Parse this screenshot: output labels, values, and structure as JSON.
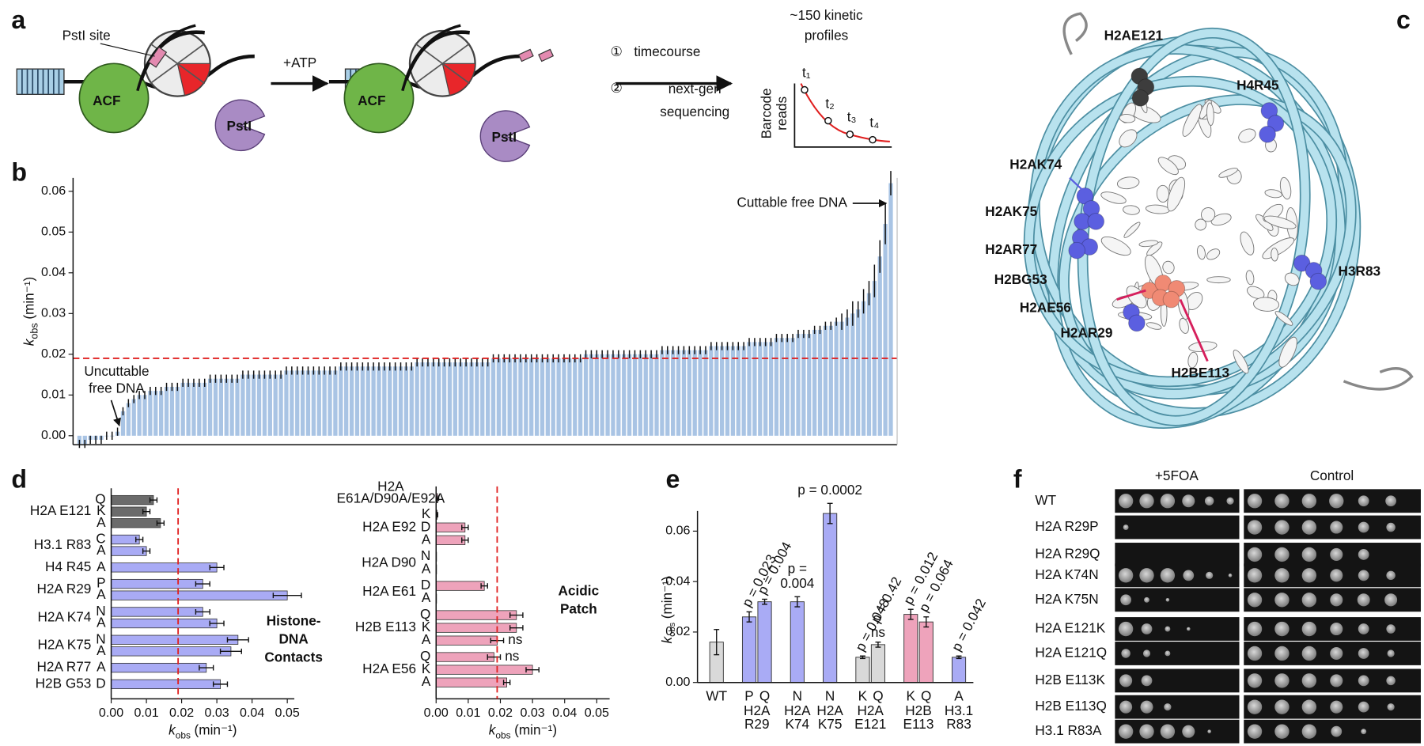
{
  "panel_labels": [
    "a",
    "b",
    "c",
    "d",
    "e",
    "f"
  ],
  "panel_a": {
    "pst_site": "PstI site",
    "enzyme": "ACF",
    "nuclease": "PstI",
    "reagent": "+ATP",
    "step1": [
      "①",
      "timecourse"
    ],
    "step2": [
      "②",
      "next-gen",
      "sequencing"
    ],
    "profiles": [
      "~150 kinetic",
      "profiles"
    ],
    "axis": [
      "Barcode",
      "reads"
    ],
    "time_points": [
      "t₁",
      "t₂",
      "t₃",
      "t₄"
    ]
  },
  "panel_c": {
    "labels": [
      {
        "text": "H2AE121",
        "color": "#4a4a4a"
      },
      {
        "text": "H4R45",
        "color": "#5a5ee0"
      },
      {
        "text": "H2AK74",
        "color": "#5a5ee0"
      },
      {
        "text": "H2AK75",
        "color": "#5a5ee0"
      },
      {
        "text": "H2AR77",
        "color": "#5a5ee0"
      },
      {
        "text": "H2BG53",
        "color": "#5a5ee0"
      },
      {
        "text": "H3R83",
        "color": "#5a5ee0"
      },
      {
        "text": "H2AE56",
        "color": "#d61f5c"
      },
      {
        "text": "H2AR29",
        "color": "#5a5ee0"
      },
      {
        "text": "H2BE113",
        "color": "#d61f5c"
      }
    ]
  },
  "panel_f": {
    "columns": [
      "+5FOA",
      "Control"
    ],
    "rows": [
      "WT",
      "H2A R29P",
      "H2A R29Q",
      "H2A K74N",
      "H2A K75N",
      "H2A E121K",
      "H2A E121Q",
      "H2B E113K",
      "H2B E113Q",
      "H3.1 R83A"
    ]
  },
  "chart_data": [
    {
      "type": "bar",
      "ylabel": {
        "symbol": "k",
        "subscript": "obs",
        "unit": "(min⁻¹)"
      },
      "color": "#a9c4e4",
      "error_color": "#111111",
      "ylim": [
        -0.0022,
        0.0633
      ],
      "yticks": [
        {
          "value": 0,
          "label": "0.00"
        },
        0.01,
        0.02,
        0.03,
        0.04,
        0.05,
        0.06
      ],
      "reference_line": {
        "value": 0.019,
        "color": "#e02020"
      },
      "annotations": [
        {
          "lines": [
            "Cuttable free DNA"
          ]
        },
        {
          "lines": [
            "Uncuttable",
            "free DNA"
          ]
        }
      ],
      "values": [
        -0.002,
        -0.002,
        -0.001,
        -0.001,
        -0.001,
        0,
        0,
        0.001,
        0.006,
        0.008,
        0.009,
        0.01,
        0.01,
        0.011,
        0.011,
        0.011,
        0.012,
        0.012,
        0.012,
        0.013,
        0.013,
        0.013,
        0.013,
        0.013,
        0.014,
        0.014,
        0.014,
        0.014,
        0.014,
        0.014,
        0.015,
        0.015,
        0.015,
        0.015,
        0.015,
        0.015,
        0.015,
        0.015,
        0.016,
        0.016,
        0.016,
        0.016,
        0.016,
        0.016,
        0.016,
        0.016,
        0.016,
        0.016,
        0.017,
        0.017,
        0.017,
        0.017,
        0.017,
        0.017,
        0.017,
        0.017,
        0.017,
        0.017,
        0.017,
        0.017,
        0.017,
        0.017,
        0.018,
        0.018,
        0.018,
        0.018,
        0.018,
        0.018,
        0.018,
        0.018,
        0.018,
        0.018,
        0.018,
        0.018,
        0.018,
        0.018,
        0.019,
        0.019,
        0.019,
        0.019,
        0.019,
        0.019,
        0.019,
        0.019,
        0.019,
        0.019,
        0.019,
        0.019,
        0.019,
        0.019,
        0.019,
        0.019,
        0.019,
        0.02,
        0.02,
        0.02,
        0.02,
        0.02,
        0.02,
        0.02,
        0.02,
        0.02,
        0.02,
        0.02,
        0.02,
        0.02,
        0.02,
        0.021,
        0.021,
        0.021,
        0.021,
        0.021,
        0.021,
        0.021,
        0.021,
        0.021,
        0.022,
        0.022,
        0.022,
        0.022,
        0.022,
        0.022,
        0.022,
        0.023,
        0.023,
        0.023,
        0.023,
        0.023,
        0.024,
        0.024,
        0.024,
        0.024,
        0.025,
        0.025,
        0.025,
        0.026,
        0.026,
        0.027,
        0.027,
        0.028,
        0.028,
        0.029,
        0.03,
        0.031,
        0.033,
        0.035,
        0.038,
        0.044,
        0.052,
        0.062
      ],
      "errors": [
        0.001,
        0.001,
        0.001,
        0.001,
        0.001,
        0.001,
        0.001,
        0.001,
        0.001,
        0.001,
        0.001,
        0.001,
        0.001,
        0.001,
        0.001,
        0.001,
        0.001,
        0.001,
        0.001,
        0.001,
        0.001,
        0.001,
        0.001,
        0.001,
        0.001,
        0.001,
        0.001,
        0.001,
        0.001,
        0.001,
        0.001,
        0.001,
        0.001,
        0.001,
        0.001,
        0.001,
        0.001,
        0.001,
        0.001,
        0.001,
        0.001,
        0.001,
        0.001,
        0.001,
        0.001,
        0.001,
        0.001,
        0.001,
        0.001,
        0.001,
        0.001,
        0.001,
        0.001,
        0.001,
        0.001,
        0.001,
        0.001,
        0.001,
        0.001,
        0.001,
        0.001,
        0.001,
        0.001,
        0.001,
        0.001,
        0.001,
        0.001,
        0.001,
        0.001,
        0.001,
        0.001,
        0.001,
        0.001,
        0.001,
        0.001,
        0.001,
        0.001,
        0.001,
        0.001,
        0.001,
        0.001,
        0.001,
        0.001,
        0.001,
        0.001,
        0.001,
        0.001,
        0.001,
        0.001,
        0.001,
        0.001,
        0.001,
        0.001,
        0.001,
        0.001,
        0.001,
        0.001,
        0.001,
        0.001,
        0.001,
        0.001,
        0.001,
        0.001,
        0.001,
        0.001,
        0.001,
        0.001,
        0.001,
        0.001,
        0.001,
        0.001,
        0.001,
        0.001,
        0.001,
        0.001,
        0.001,
        0.001,
        0.001,
        0.001,
        0.001,
        0.001,
        0.001,
        0.001,
        0.001,
        0.001,
        0.001,
        0.001,
        0.001,
        0.001,
        0.001,
        0.001,
        0.001,
        0.001,
        0.001,
        0.001,
        0.001,
        0.001,
        0.001,
        0.001,
        0.001,
        0.002,
        0.002,
        0.003,
        0.002,
        0.003,
        0.003,
        0.004,
        0.004,
        0.005,
        0.003
      ]
    },
    {
      "type": "hbar",
      "xlabel": {
        "symbol": "k",
        "subscript": "obs",
        "unit": "(min⁻¹)"
      },
      "xlim": [
        0,
        0.052
      ],
      "xticks": [
        {
          "value": 0,
          "label": "0.00"
        },
        0.01,
        0.02,
        0.03,
        0.04,
        0.05
      ],
      "reference_line": {
        "value": 0.019,
        "color": "#e02020"
      },
      "annotation": {
        "lines": [
          "Histone-",
          "DNA",
          "Contacts"
        ],
        "color": "#6b6fe0"
      },
      "groups": [
        {
          "name": [
            "H2A E121"
          ],
          "color": "#6b6b6b",
          "rows": [
            {
              "label": "Q",
              "value": 0.012,
              "error": 0.001
            },
            {
              "label": "K",
              "value": 0.01,
              "error": 0.001
            },
            {
              "label": "A",
              "value": 0.014,
              "error": 0.001
            }
          ]
        },
        {
          "name": [
            "H3.1 R83"
          ],
          "color": "#a9abf5",
          "rows": [
            {
              "label": "C",
              "value": 0.008,
              "error": 0.001
            },
            {
              "label": "A",
              "value": 0.01,
              "error": 0.001
            }
          ]
        },
        {
          "name": [
            "H4 R45"
          ],
          "color": "#a9abf5",
          "rows": [
            {
              "label": "A",
              "value": 0.03,
              "error": 0.002
            }
          ]
        },
        {
          "name": [
            "H2A R29"
          ],
          "color": "#a9abf5",
          "rows": [
            {
              "label": "P",
              "value": 0.026,
              "error": 0.002
            },
            {
              "label": "A",
              "value": 0.05,
              "error": 0.004
            }
          ]
        },
        {
          "name": [
            "H2A K74"
          ],
          "color": "#a9abf5",
          "rows": [
            {
              "label": "N",
              "value": 0.026,
              "error": 0.002
            },
            {
              "label": "A",
              "value": 0.03,
              "error": 0.002
            }
          ]
        },
        {
          "name": [
            "H2A K75"
          ],
          "color": "#a9abf5",
          "rows": [
            {
              "label": "N",
              "value": 0.036,
              "error": 0.003
            },
            {
              "label": "A",
              "value": 0.034,
              "error": 0.003
            }
          ]
        },
        {
          "name": [
            "H2A R77"
          ],
          "color": "#a9abf5",
          "rows": [
            {
              "label": "A",
              "value": 0.027,
              "error": 0.002
            }
          ]
        },
        {
          "name": [
            "H2B G53"
          ],
          "color": "#a9abf5",
          "rows": [
            {
              "label": "D",
              "value": 0.031,
              "error": 0.002
            }
          ]
        }
      ]
    },
    {
      "type": "hbar",
      "xlabel": {
        "symbol": "k",
        "subscript": "obs",
        "unit": "(min⁻¹)"
      },
      "xlim": [
        0,
        0.054
      ],
      "xticks": [
        {
          "value": 0,
          "label": "0.00"
        },
        0.01,
        0.02,
        0.03,
        0.04,
        0.05
      ],
      "reference_line": {
        "value": 0.019,
        "color": "#e02020"
      },
      "annotation": {
        "lines": [
          "Acidic",
          "Patch"
        ],
        "color": "#d6306a"
      },
      "groups": [
        {
          "name": [
            "H2A",
            "E61A/D90A/E92A"
          ],
          "color": "#eea3bb",
          "rows": [
            {
              "label": null,
              "value": 0.0005,
              "error": 0.0003
            }
          ]
        },
        {
          "name": [
            "H2A E92"
          ],
          "color": "#eea3bb",
          "rows": [
            {
              "label": "K",
              "value": 0.0003,
              "error": 0.0002
            },
            {
              "label": "D",
              "value": 0.009,
              "error": 0.001
            },
            {
              "label": "A",
              "value": 0.009,
              "error": 0.001
            }
          ]
        },
        {
          "name": [
            "H2A D90"
          ],
          "color": "#eea3bb",
          "rows": [
            {
              "label": "N",
              "value": 0
            },
            {
              "label": "A",
              "value": 0
            }
          ]
        },
        {
          "name": [
            "H2A E61"
          ],
          "color": "#eea3bb",
          "rows": [
            {
              "label": "D",
              "value": 0.015,
              "error": 0.001
            },
            {
              "label": "A",
              "value": 0
            }
          ]
        },
        {
          "name": [
            "H2B E113"
          ],
          "color": "#eea3bb",
          "rows": [
            {
              "label": "Q",
              "value": 0.025,
              "error": 0.002
            },
            {
              "label": "K",
              "value": 0.025,
              "error": 0.002
            },
            {
              "label": "A",
              "value": 0.019,
              "error": 0.002,
              "note": "ns"
            }
          ]
        },
        {
          "name": [
            "H2A E56"
          ],
          "color": "#eea3bb",
          "rows": [
            {
              "label": "Q",
              "value": 0.018,
              "error": 0.002,
              "note": "ns"
            },
            {
              "label": "K",
              "value": 0.03,
              "error": 0.002
            },
            {
              "label": "A",
              "value": 0.022,
              "error": 0.001
            }
          ]
        }
      ]
    },
    {
      "type": "bar",
      "ylabel": {
        "symbol": "k",
        "subscript": "obs",
        "unit": "(min⁻¹)"
      },
      "ylim": [
        0,
        0.068
      ],
      "yticks": [
        {
          "value": 0,
          "label": "0.00"
        },
        0.02,
        0.04,
        0.06
      ],
      "groups": [
        {
          "bars": [
            {
              "label": "WT",
              "value": 0.016,
              "error": 0.005,
              "color": "#d9d9d9"
            }
          ]
        },
        {
          "name": [
            "H2A",
            "R29"
          ],
          "bars": [
            {
              "label": "P",
              "value": 0.026,
              "error": 0.002,
              "color": "#a9abf5",
              "p": [
                "p = 0.023"
              ]
            },
            {
              "label": "Q",
              "value": 0.032,
              "error": 0.001,
              "color": "#a9abf5",
              "p": [
                "p = 0.004"
              ]
            }
          ]
        },
        {
          "name": [
            "H2A",
            "K74"
          ],
          "bars": [
            {
              "label": "N",
              "value": 0.032,
              "error": 0.002,
              "color": "#a9abf5",
              "p": [
                "p =",
                "0.004"
              ]
            }
          ]
        },
        {
          "name": [
            "H2A",
            "K75"
          ],
          "bars": [
            {
              "label": "N",
              "value": 0.067,
              "error": 0.004,
              "color": "#a9abf5",
              "p": [
                "p = 0.0002"
              ]
            }
          ]
        },
        {
          "name": [
            "H2A",
            "E121"
          ],
          "bars": [
            {
              "label": "K",
              "value": 0.01,
              "error": 0.0005,
              "color": "#d9d9d9",
              "p": [
                "p = 0.048"
              ]
            },
            {
              "label": "Q",
              "value": 0.015,
              "error": 0.001,
              "color": "#d9d9d9",
              "p": [
                "p = 0.42"
              ],
              "note": "ns"
            }
          ]
        },
        {
          "name": [
            "H2B",
            "E113"
          ],
          "bars": [
            {
              "label": "K",
              "value": 0.027,
              "error": 0.002,
              "color": "#eea3bb",
              "p": [
                "p = 0.012"
              ]
            },
            {
              "label": "Q",
              "value": 0.024,
              "error": 0.002,
              "color": "#eea3bb",
              "p": [
                "p = 0.064"
              ]
            }
          ]
        },
        {
          "name": [
            "H3.1",
            "R83"
          ],
          "bars": [
            {
              "label": "A",
              "value": 0.01,
              "error": 0.0005,
              "color": "#a9abf5",
              "p": [
                "p = 0.042"
              ]
            }
          ]
        }
      ]
    }
  ]
}
